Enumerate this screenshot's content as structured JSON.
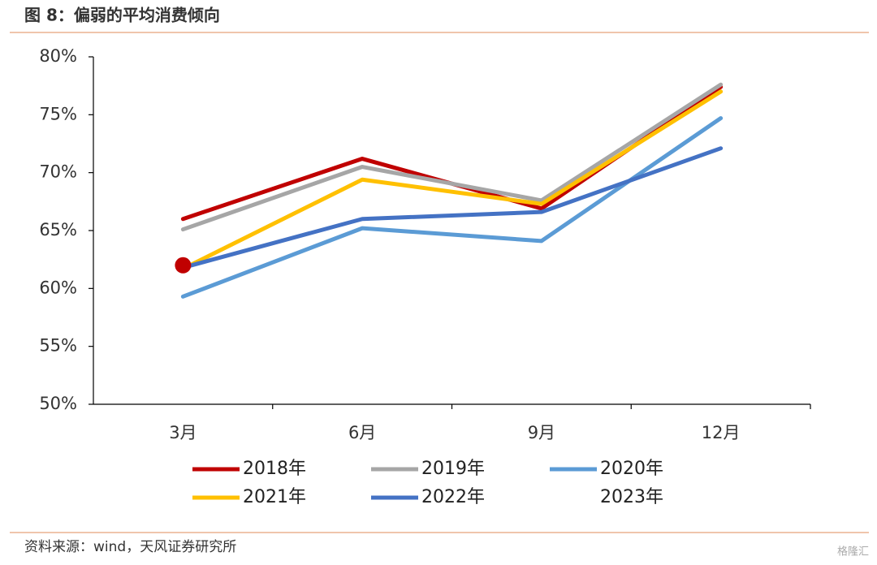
{
  "chart_data": {
    "type": "line",
    "title": "图 8：偏弱的平均消费倾向",
    "categories": [
      "3月",
      "6月",
      "9月",
      "12月"
    ],
    "series": [
      {
        "name": "2018年",
        "color": "#c00000",
        "values": [
          66.0,
          71.2,
          66.9,
          77.4
        ]
      },
      {
        "name": "2019年",
        "color": "#a6a6a6",
        "values": [
          65.1,
          70.5,
          67.6,
          77.6
        ]
      },
      {
        "name": "2020年",
        "color": "#5b9bd5",
        "values": [
          59.3,
          65.2,
          64.1,
          74.7
        ]
      },
      {
        "name": "2021年",
        "color": "#ffc000",
        "values": [
          61.7,
          69.4,
          67.3,
          77.0
        ]
      },
      {
        "name": "2022年",
        "color": "#4472c4",
        "values": [
          61.8,
          66.0,
          66.6,
          72.1
        ]
      },
      {
        "name": "2023年",
        "color": "#c00000",
        "values": [
          62.0,
          null,
          null,
          null
        ],
        "mark": "point"
      }
    ],
    "ylim": [
      50,
      80
    ],
    "yticks": [
      {
        "value": 50,
        "label": "50%"
      },
      {
        "value": 55,
        "label": "55%"
      },
      {
        "value": 60,
        "label": "60%"
      },
      {
        "value": 65,
        "label": "65%"
      },
      {
        "value": 70,
        "label": "70%"
      },
      {
        "value": 75,
        "label": "75%"
      },
      {
        "value": 80,
        "label": "80%"
      }
    ],
    "source": "资料来源：wind，天风证券研究所",
    "watermark": "格隆汇"
  }
}
